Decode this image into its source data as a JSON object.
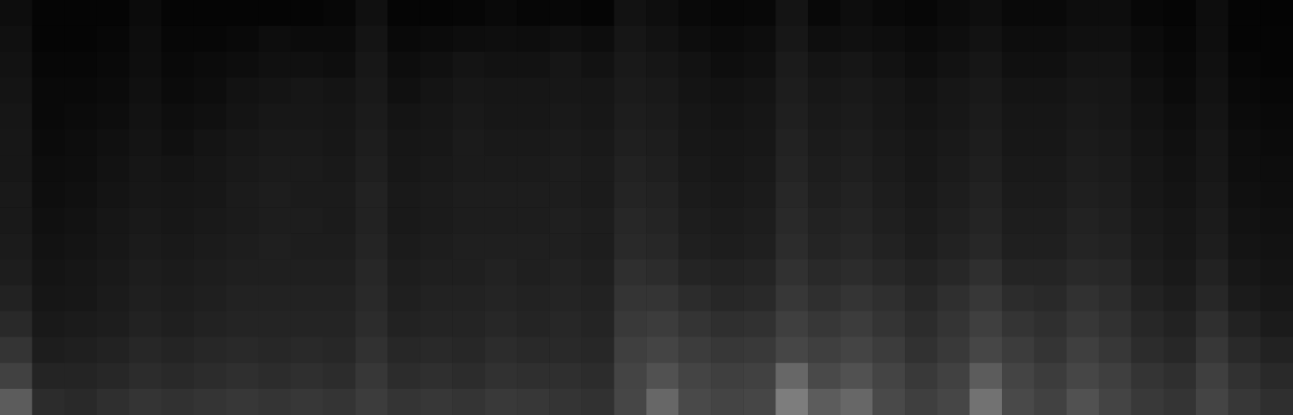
{
  "chart_data": {
    "type": "heatmap",
    "tick_labels": false,
    "grid": false,
    "zlim": [
      0,
      100
    ],
    "cells": [
      [
        15,
        5,
        5,
        6,
        12,
        6,
        6,
        5,
        6,
        6,
        8,
        18,
        6,
        6,
        7,
        10,
        7,
        8,
        6,
        20,
        16,
        10,
        8,
        9,
        22,
        9,
        14,
        10,
        8,
        12,
        16,
        10,
        10,
        14,
        14,
        8,
        6,
        14,
        5,
        4
      ],
      [
        18,
        6,
        6,
        8,
        14,
        8,
        8,
        10,
        14,
        12,
        12,
        22,
        10,
        12,
        14,
        16,
        14,
        18,
        14,
        24,
        20,
        14,
        12,
        14,
        26,
        16,
        18,
        16,
        12,
        16,
        20,
        14,
        14,
        18,
        18,
        12,
        8,
        16,
        6,
        5
      ],
      [
        20,
        8,
        8,
        10,
        16,
        10,
        12,
        14,
        18,
        18,
        16,
        25,
        14,
        18,
        22,
        20,
        20,
        24,
        20,
        28,
        24,
        20,
        16,
        18,
        30,
        22,
        24,
        20,
        16,
        20,
        24,
        18,
        18,
        22,
        22,
        14,
        10,
        18,
        8,
        6
      ],
      [
        22,
        10,
        10,
        12,
        18,
        12,
        14,
        20,
        22,
        24,
        22,
        28,
        18,
        22,
        26,
        24,
        24,
        26,
        24,
        30,
        28,
        22,
        20,
        22,
        32,
        26,
        28,
        24,
        20,
        24,
        28,
        22,
        22,
        26,
        24,
        18,
        12,
        20,
        10,
        8
      ],
      [
        24,
        10,
        12,
        14,
        20,
        16,
        18,
        22,
        26,
        26,
        24,
        30,
        22,
        24,
        28,
        26,
        26,
        28,
        26,
        32,
        30,
        24,
        22,
        24,
        34,
        28,
        30,
        26,
        22,
        26,
        30,
        24,
        24,
        28,
        26,
        20,
        16,
        22,
        12,
        10
      ],
      [
        25,
        12,
        14,
        18,
        22,
        18,
        22,
        26,
        28,
        28,
        26,
        32,
        24,
        26,
        30,
        28,
        28,
        30,
        28,
        34,
        32,
        26,
        24,
        26,
        36,
        30,
        32,
        28,
        24,
        28,
        32,
        26,
        26,
        30,
        28,
        22,
        18,
        24,
        14,
        12
      ],
      [
        26,
        14,
        16,
        20,
        24,
        22,
        24,
        28,
        30,
        30,
        28,
        34,
        26,
        28,
        30,
        30,
        30,
        32,
        30,
        36,
        34,
        28,
        26,
        28,
        38,
        32,
        34,
        30,
        26,
        30,
        34,
        28,
        28,
        32,
        30,
        24,
        20,
        26,
        16,
        14
      ],
      [
        28,
        16,
        18,
        22,
        26,
        24,
        26,
        30,
        32,
        30,
        30,
        36,
        28,
        30,
        32,
        32,
        32,
        32,
        30,
        38,
        36,
        30,
        28,
        30,
        40,
        34,
        36,
        32,
        28,
        32,
        36,
        30,
        30,
        34,
        32,
        26,
        22,
        28,
        18,
        16
      ],
      [
        28,
        18,
        20,
        24,
        28,
        26,
        28,
        30,
        32,
        32,
        30,
        36,
        28,
        30,
        32,
        32,
        32,
        34,
        32,
        40,
        38,
        32,
        30,
        32,
        42,
        36,
        38,
        34,
        30,
        34,
        38,
        32,
        32,
        36,
        34,
        28,
        24,
        30,
        20,
        18
      ],
      [
        30,
        20,
        22,
        26,
        30,
        28,
        30,
        32,
        34,
        32,
        32,
        38,
        30,
        32,
        34,
        34,
        34,
        34,
        32,
        42,
        40,
        34,
        32,
        34,
        44,
        38,
        40,
        36,
        32,
        36,
        40,
        34,
        34,
        38,
        36,
        30,
        26,
        32,
        22,
        20
      ],
      [
        32,
        22,
        24,
        28,
        32,
        30,
        32,
        34,
        34,
        34,
        34,
        40,
        32,
        34,
        34,
        36,
        34,
        36,
        34,
        46,
        44,
        38,
        36,
        38,
        48,
        42,
        44,
        40,
        36,
        40,
        46,
        38,
        38,
        42,
        40,
        32,
        28,
        36,
        26,
        22
      ],
      [
        36,
        24,
        26,
        30,
        34,
        32,
        34,
        36,
        36,
        36,
        36,
        42,
        34,
        36,
        36,
        38,
        36,
        38,
        36,
        50,
        50,
        44,
        40,
        42,
        52,
        46,
        50,
        46,
        40,
        46,
        52,
        44,
        42,
        48,
        44,
        36,
        32,
        40,
        30,
        26
      ],
      [
        42,
        28,
        30,
        32,
        36,
        34,
        36,
        38,
        38,
        38,
        38,
        44,
        36,
        38,
        38,
        40,
        38,
        40,
        38,
        54,
        56,
        50,
        46,
        48,
        58,
        52,
        56,
        50,
        44,
        50,
        58,
        50,
        46,
        52,
        48,
        40,
        36,
        46,
        36,
        30
      ],
      [
        50,
        32,
        34,
        36,
        40,
        38,
        40,
        42,
        40,
        42,
        40,
        48,
        40,
        42,
        40,
        44,
        42,
        42,
        40,
        58,
        62,
        56,
        52,
        54,
        64,
        58,
        62,
        56,
        48,
        54,
        64,
        56,
        50,
        58,
        52,
        44,
        40,
        52,
        42,
        36
      ],
      [
        60,
        38,
        38,
        40,
        44,
        42,
        44,
        46,
        44,
        46,
        44,
        52,
        44,
        46,
        44,
        48,
        46,
        46,
        44,
        62,
        68,
        62,
        58,
        60,
        72,
        66,
        68,
        62,
        54,
        60,
        70,
        62,
        56,
        64,
        58,
        50,
        46,
        58,
        48,
        42
      ],
      [
        70,
        44,
        42,
        46,
        50,
        48,
        50,
        52,
        50,
        52,
        50,
        56,
        50,
        52,
        50,
        54,
        52,
        50,
        48,
        64,
        72,
        66,
        62,
        64,
        76,
        70,
        72,
        66,
        58,
        64,
        74,
        66,
        60,
        68,
        62,
        54,
        50,
        62,
        52,
        46
      ]
    ]
  }
}
